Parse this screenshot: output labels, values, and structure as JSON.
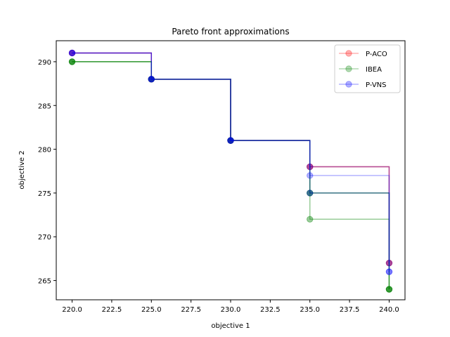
{
  "chart_data": {
    "type": "line",
    "title": "Pareto front approximations",
    "xlabel": "objective 1",
    "ylabel": "objective 2",
    "xlim": [
      219.0,
      241.0
    ],
    "ylim": [
      262.8,
      292.4
    ],
    "xticks": [
      220.0,
      222.5,
      225.0,
      227.5,
      230.0,
      232.5,
      235.0,
      237.5,
      240.0
    ],
    "xtick_labels": [
      "220.0",
      "222.5",
      "225.0",
      "227.5",
      "230.0",
      "232.5",
      "235.0",
      "237.5",
      "240.0"
    ],
    "yticks": [
      265,
      270,
      275,
      280,
      285,
      290
    ],
    "ytick_labels": [
      "265",
      "270",
      "275",
      "280",
      "285",
      "290"
    ],
    "grid": false,
    "legend_position": "top-right",
    "legend": [
      {
        "name": "P-ACO",
        "color": "#ff0000"
      },
      {
        "name": "IBEA",
        "color": "#008000"
      },
      {
        "name": "P-VNS",
        "color": "#0000ff"
      }
    ],
    "series": [
      {
        "group": "P-ACO",
        "color": "#ff0000",
        "opacity": 0.25,
        "points": [
          [
            220,
            291
          ],
          [
            225,
            288
          ],
          [
            230,
            281
          ],
          [
            235,
            278
          ],
          [
            240,
            267
          ]
        ]
      },
      {
        "group": "P-ACO",
        "color": "#ff0000",
        "opacity": 0.25,
        "points": [
          [
            220,
            291
          ],
          [
            225,
            288
          ],
          [
            230,
            281
          ],
          [
            235,
            278
          ],
          [
            240,
            267
          ]
        ]
      },
      {
        "group": "P-ACO",
        "color": "#ff0000",
        "opacity": 0.25,
        "points": [
          [
            220,
            291
          ],
          [
            225,
            288
          ],
          [
            230,
            281
          ],
          [
            235,
            278
          ],
          [
            240,
            267
          ]
        ]
      },
      {
        "group": "IBEA",
        "color": "#008000",
        "opacity": 0.4,
        "points": [
          [
            220,
            290
          ],
          [
            225,
            288
          ],
          [
            230,
            281
          ],
          [
            235,
            272
          ],
          [
            240,
            264
          ]
        ]
      },
      {
        "group": "IBEA",
        "color": "#008000",
        "opacity": 0.4,
        "points": [
          [
            220,
            290
          ],
          [
            225,
            288
          ],
          [
            230,
            281
          ],
          [
            235,
            275
          ],
          [
            240,
            264
          ]
        ]
      },
      {
        "group": "IBEA",
        "color": "#008000",
        "opacity": 0.4,
        "points": [
          [
            220,
            290
          ],
          [
            225,
            288
          ],
          [
            230,
            281
          ],
          [
            235,
            275
          ],
          [
            240,
            264
          ]
        ]
      },
      {
        "group": "P-VNS",
        "color": "#0000ff",
        "opacity": 0.3,
        "points": [
          [
            220,
            291
          ],
          [
            225,
            288
          ],
          [
            230,
            281
          ],
          [
            235,
            277
          ],
          [
            240,
            266
          ]
        ]
      },
      {
        "group": "P-VNS",
        "color": "#0000ff",
        "opacity": 0.3,
        "points": [
          [
            220,
            291
          ],
          [
            225,
            288
          ],
          [
            230,
            281
          ],
          [
            235,
            278
          ],
          [
            240,
            267
          ]
        ]
      },
      {
        "group": "P-VNS",
        "color": "#0000ff",
        "opacity": 0.3,
        "points": [
          [
            220,
            291
          ],
          [
            225,
            288
          ],
          [
            230,
            281
          ],
          [
            235,
            275
          ],
          [
            240,
            266
          ]
        ]
      }
    ]
  }
}
